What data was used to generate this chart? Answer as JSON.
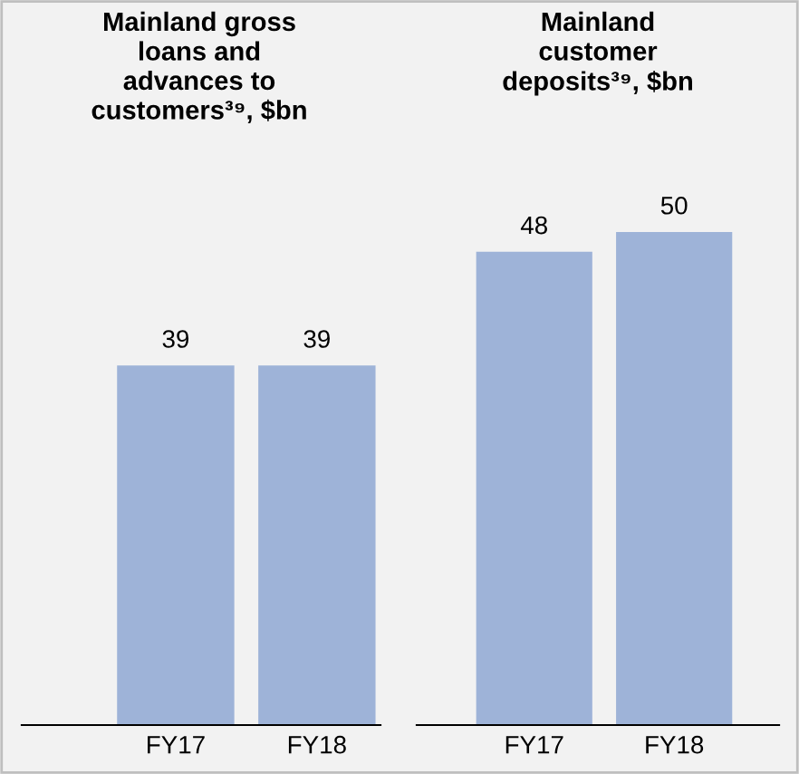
{
  "chart_data": [
    {
      "type": "bar",
      "title": "Mainland gross\nloans and\nadvances to\ncustomers³⁹, $bn",
      "categories": [
        "FY17",
        "FY18"
      ],
      "values": [
        39,
        39
      ],
      "color": "#9eb3d8",
      "data_labels": true
    },
    {
      "type": "bar",
      "title": "Mainland\ncustomer\ndeposits³⁹, $bn",
      "categories": [
        "FY17",
        "FY18"
      ],
      "values": [
        48,
        50
      ],
      "color": "#9eb3d8",
      "data_labels": true
    }
  ]
}
